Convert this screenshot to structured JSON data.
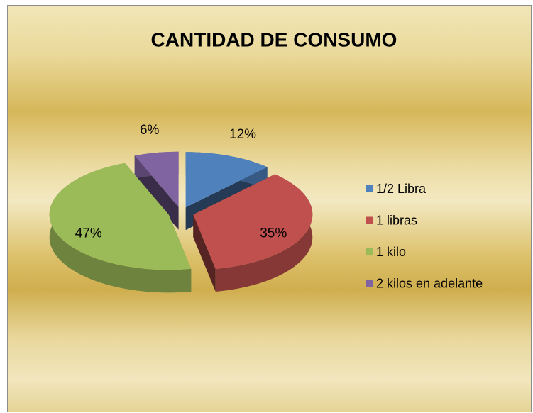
{
  "chart_data": {
    "type": "pie",
    "title": "CANTIDAD DE CONSUMO",
    "categories": [
      "1/2 Libra",
      "1 libras",
      "1 kilo",
      "2 kilos en adelante"
    ],
    "values": [
      12,
      35,
      47,
      6
    ],
    "value_labels": [
      "12%",
      "35%",
      "47%",
      "6%"
    ],
    "colors": [
      "#4f81bd",
      "#c0504d",
      "#9bbb59",
      "#8064a2"
    ],
    "legend": "right"
  }
}
